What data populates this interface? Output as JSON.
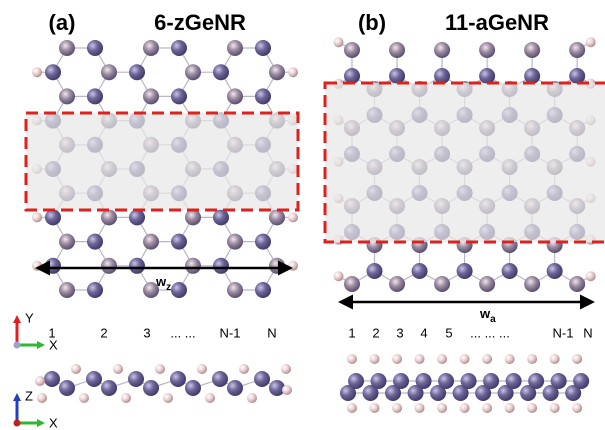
{
  "panel_a": {
    "label": "(a)",
    "title": "6-zGeNR",
    "width_symbol": "w",
    "width_subscript": "z",
    "dimer_labels": [
      "1",
      "2",
      "3",
      "... ...",
      "N-1",
      "N"
    ]
  },
  "panel_b": {
    "label": "(b)",
    "title": "11-aGeNR",
    "width_symbol": "w",
    "width_subscript": "a",
    "dimer_labels": [
      "1",
      "2",
      "3",
      "4",
      "5",
      "... ... ...",
      "N-1",
      "N"
    ]
  },
  "axes_top": {
    "vertical": "Y",
    "horizontal": "X"
  },
  "axes_bottom": {
    "vertical": "Z",
    "horizontal": "X"
  }
}
